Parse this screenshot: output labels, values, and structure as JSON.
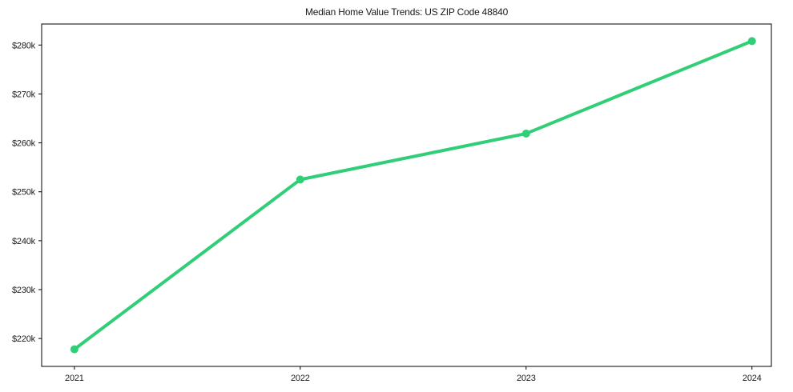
{
  "chart_data": {
    "type": "line",
    "title": "Median Home Value Trends: US ZIP Code 48840",
    "xlabel": "",
    "ylabel": "",
    "x": [
      2021,
      2022,
      2023,
      2024
    ],
    "x_tick_labels": [
      "2021",
      "2022",
      "2023",
      "2024"
    ],
    "series": [
      {
        "name": "median-home-value",
        "values": [
          217800,
          252500,
          261900,
          280800
        ]
      }
    ],
    "y_ticks": [
      220000,
      230000,
      240000,
      250000,
      260000,
      270000,
      280000
    ],
    "y_tick_labels": [
      "$220k",
      "$230k",
      "$240k",
      "$250k",
      "$260k",
      "$270k",
      "$280k"
    ],
    "xlim": [
      2020.855,
      2024.086
    ],
    "ylim": [
      214300,
      284300
    ],
    "grid": false,
    "legend": null,
    "colors": {
      "line": "#31ce78",
      "marker": "#31ce78",
      "axis": "#000000",
      "text": "#1a1a1a",
      "background": "#ffffff"
    }
  }
}
